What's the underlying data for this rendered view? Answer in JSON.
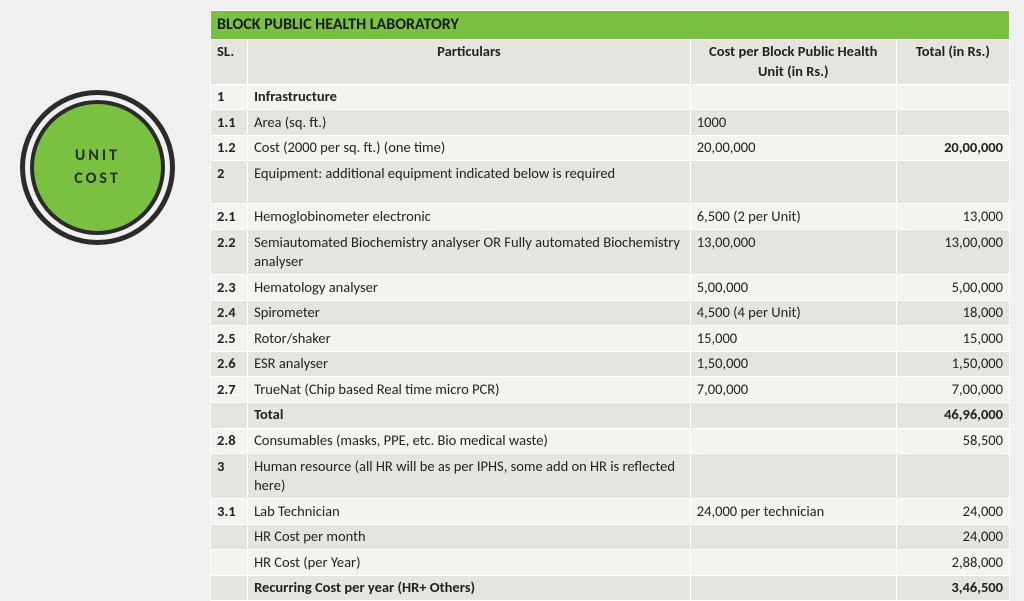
{
  "badge": {
    "line1": "UNIT",
    "line2": "COST"
  },
  "colors": {
    "accent": "#7ac142",
    "row_a": "#f4f3ef",
    "row_b": "#e6e4de",
    "page_bg": "#f0f0f0",
    "ring_dark": "#2b2b2b"
  },
  "table": {
    "title": "BLOCK PUBLIC HEALTH LABORATORY",
    "headers": {
      "sl": "SL.",
      "particulars": "Particulars",
      "cost": "Cost per Block Public Health Unit (in Rs.)",
      "total": "Total (in Rs.)"
    },
    "rows": [
      {
        "sl": "1",
        "part": "Infrastructure",
        "cost": "",
        "total": "",
        "bold_part": true,
        "shade": "a"
      },
      {
        "sl": "1.1",
        "part": "Area (sq. ft.)",
        "cost": "1000",
        "total": "",
        "shade": "b"
      },
      {
        "sl": "1.2",
        "part": "Cost (2000 per sq. ft.) (one time)",
        "cost": "20,00,000",
        "total": "20,00,000",
        "bold_total": true,
        "shade": "a"
      },
      {
        "sl": "2",
        "part": "Equipment: additional equipment indicated below is required",
        "cost": "",
        "total": "",
        "shade": "b",
        "tall": true
      },
      {
        "sl": "2.1",
        "part": "Hemoglobinometer electronic",
        "cost": "6,500 (2 per Unit)",
        "total": "13,000",
        "shade": "a"
      },
      {
        "sl": "2.2",
        "part": "Semiautomated Biochemistry analyser OR Fully automated Biochemistry analyser",
        "cost": "13,00,000",
        "total": "13,00,000",
        "shade": "b"
      },
      {
        "sl": "2.3",
        "part": "Hematology analyser",
        "cost": "5,00,000",
        "total": "5,00,000",
        "shade": "a"
      },
      {
        "sl": "2.4",
        "part": "Spirometer",
        "cost": "4,500 (4 per Unit)",
        "total": "18,000",
        "shade": "b"
      },
      {
        "sl": "2.5",
        "part": "Rotor/shaker",
        "cost": "15,000",
        "total": "15,000",
        "shade": "a"
      },
      {
        "sl": "2.6",
        "part": "ESR analyser",
        "cost": "1,50,000",
        "total": "1,50,000",
        "shade": "b"
      },
      {
        "sl": "2.7",
        "part": "TrueNat (Chip based Real time micro PCR)",
        "cost": "7,00,000",
        "total": "7,00,000",
        "shade": "a"
      },
      {
        "sl": "",
        "part": "Total",
        "cost": "",
        "total": "46,96,000",
        "bold_part": true,
        "bold_total": true,
        "shade": "b"
      },
      {
        "sl": "2.8",
        "part": "Consumables (masks, PPE, etc. Bio medical waste)",
        "cost": "",
        "total": "58,500",
        "shade": "a"
      },
      {
        "sl": "3",
        "part": "Human resource (all HR will be as per IPHS, some add on HR is reflected here)",
        "cost": "",
        "total": "",
        "shade": "b"
      },
      {
        "sl": "3.1",
        "part": "Lab Technician",
        "cost": "24,000 per technician",
        "total": "24,000",
        "shade": "a"
      },
      {
        "sl": "",
        "part": "HR Cost per month",
        "cost": "",
        "total": "24,000",
        "shade": "b"
      },
      {
        "sl": "",
        "part": "HR Cost (per Year)",
        "cost": "",
        "total": "2,88,000",
        "shade": "a"
      },
      {
        "sl": "",
        "part": "Recurring Cost per year (HR+ Others)",
        "cost": "",
        "total": "3,46,500",
        "bold_part": true,
        "bold_total": true,
        "shade": "b"
      }
    ]
  }
}
